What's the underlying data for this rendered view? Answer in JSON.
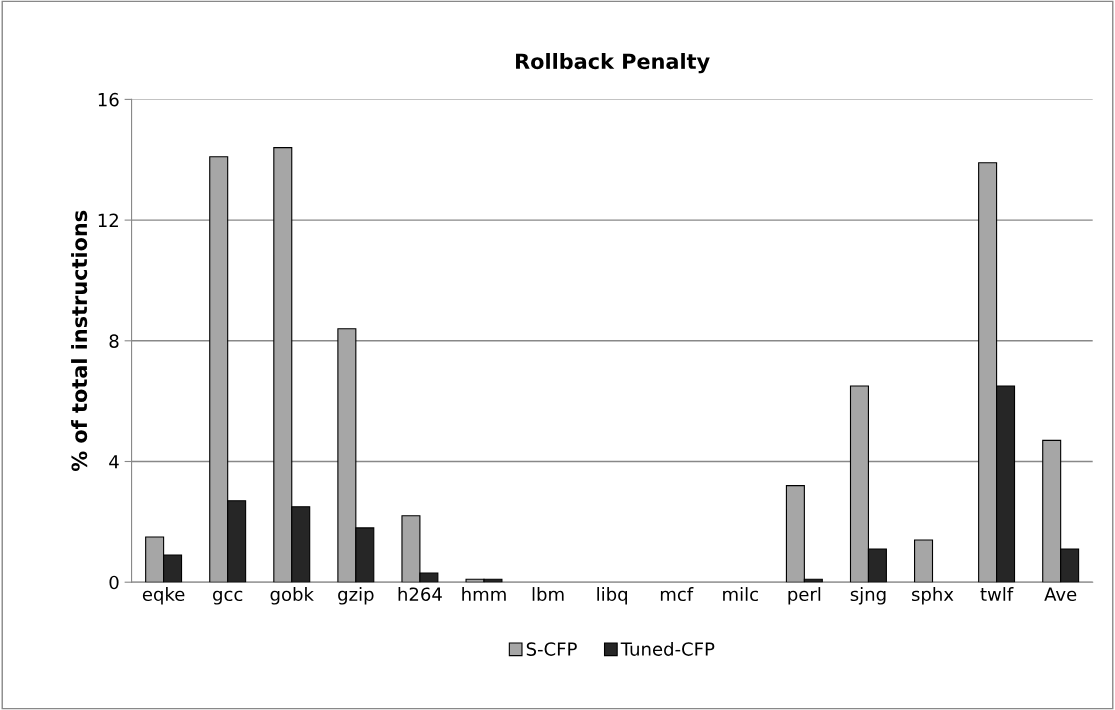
{
  "chart_data": {
    "type": "bar",
    "title": "Rollback Penalty",
    "ylabel": "% of total instructions",
    "categories": [
      "eqke",
      "gcc",
      "gobk",
      "gzip",
      "h264",
      "hmm",
      "lbm",
      "libq",
      "mcf",
      "milc",
      "perl",
      "sjng",
      "sphx",
      "twlf",
      "Ave"
    ],
    "series": [
      {
        "name": "S-CFP",
        "color": "#a6a6a6",
        "values": [
          1.5,
          14.1,
          14.4,
          8.4,
          2.2,
          0.1,
          0,
          0,
          0,
          0,
          3.2,
          6.5,
          1.4,
          13.9,
          4.7
        ]
      },
      {
        "name": "Tuned-CFP",
        "color": "#262626",
        "values": [
          0.9,
          2.7,
          2.5,
          1.8,
          0.3,
          0.1,
          0,
          0,
          0,
          0,
          0.1,
          1.1,
          0,
          6.5,
          1.1
        ]
      }
    ],
    "ylim": [
      0,
      16
    ],
    "yticks": [
      0,
      4,
      8,
      12,
      16
    ],
    "grid": "y",
    "legend": "bottom"
  }
}
